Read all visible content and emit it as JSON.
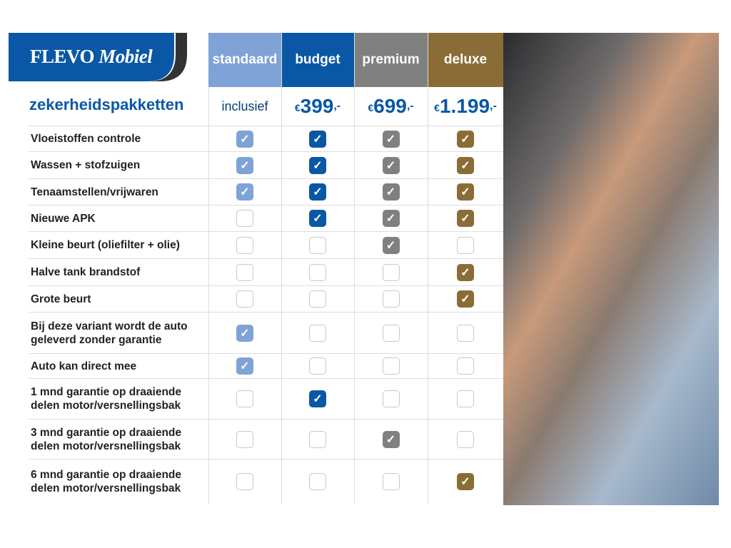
{
  "brand": {
    "name1": "FLEVO",
    "name2": "Mobiel"
  },
  "title": "zekerheidspakketten",
  "colors": {
    "standaard": "#7fa3d6",
    "budget": "#0a58a5",
    "premium": "#808080",
    "deluxe": "#8a6d36"
  },
  "packages": [
    {
      "key": "standaard",
      "name": "standaard",
      "price_text": "inclusief"
    },
    {
      "key": "budget",
      "name": "budget",
      "currency": "€",
      "price": "399",
      "suffix": ",-"
    },
    {
      "key": "premium",
      "name": "premium",
      "currency": "€",
      "price": "699",
      "suffix": ",-"
    },
    {
      "key": "deluxe",
      "name": "deluxe",
      "currency": "€",
      "price": "1.199",
      "suffix": ",-"
    }
  ],
  "features": [
    {
      "label": "Vloeistoffen controle",
      "checks": [
        true,
        true,
        true,
        true
      ]
    },
    {
      "label": "Wassen + stofzuigen",
      "checks": [
        true,
        true,
        true,
        true
      ]
    },
    {
      "label": "Tenaamstellen/vrijwaren",
      "checks": [
        true,
        true,
        true,
        true
      ]
    },
    {
      "label": "Nieuwe APK",
      "checks": [
        false,
        true,
        true,
        true
      ]
    },
    {
      "label": "Kleine beurt (oliefilter + olie)",
      "checks": [
        false,
        false,
        true,
        false
      ]
    },
    {
      "label": "Halve tank brandstof",
      "checks": [
        false,
        false,
        false,
        true
      ]
    },
    {
      "label": "Grote beurt",
      "checks": [
        false,
        false,
        false,
        true
      ]
    },
    {
      "label": "Bij deze variant wordt de auto geleverd zonder garantie",
      "checks": [
        true,
        false,
        false,
        false
      ]
    },
    {
      "label": "Auto kan direct mee",
      "checks": [
        true,
        false,
        false,
        false
      ]
    },
    {
      "label": "1 mnd garantie op draaiende delen motor/versnellingsbak",
      "checks": [
        false,
        true,
        false,
        false
      ]
    },
    {
      "label": "3 mnd garantie op draaiende delen motor/versnellingsbak",
      "checks": [
        false,
        false,
        true,
        false
      ]
    },
    {
      "label": "6 mnd garantie op draaiende delen motor/versnellingsbak",
      "checks": [
        false,
        false,
        false,
        true
      ]
    }
  ],
  "photo": {
    "icon": "photo-couple-in-car"
  }
}
